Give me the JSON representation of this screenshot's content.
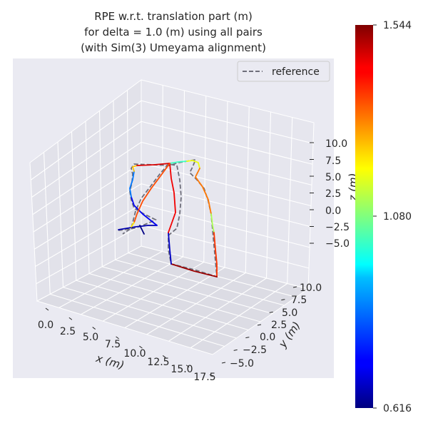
{
  "chart_data": {
    "type": "line",
    "projection": "3d",
    "title_lines": [
      "RPE w.r.t. translation part (m)",
      "for delta = 1.0 (m) using all pairs",
      "(with Sim(3) Umeyama alignment)"
    ],
    "xlabel": "x (m)",
    "ylabel": "y (m)",
    "zlabel": "z (m)",
    "x_ticks": [
      "0.0",
      "2.5",
      "5.0",
      "7.5",
      "10.0",
      "12.5",
      "15.0",
      "17.5"
    ],
    "y_ticks": [
      "−5.0",
      "−2.5",
      "0.0",
      "2.5",
      "5.0",
      "7.5",
      "10.0"
    ],
    "z_ticks": [
      "10.0",
      "7.5",
      "5.0",
      "2.5",
      "0.0",
      "−2.5",
      "−5.0"
    ],
    "legend": {
      "placement": "top-right",
      "entries": [
        {
          "label": "reference",
          "style": "dashed",
          "color": "#6e6e7a"
        }
      ]
    },
    "colorbar": {
      "colormap": "jet",
      "min": 0.616,
      "max": 1.544,
      "tick_labels": [
        "1.544",
        "1.080",
        "0.616"
      ]
    },
    "grid": true,
    "background_color": "#eaeaf2",
    "series": [
      {
        "kind": "reference",
        "points": [
          [
            166,
            323
          ],
          [
            188,
            320
          ],
          [
            200,
            316
          ],
          [
            212,
            311
          ],
          [
            218,
            308
          ],
          [
            202,
            300
          ],
          [
            188,
            292
          ],
          [
            184,
            280
          ],
          [
            182,
            268
          ],
          [
            185,
            256
          ],
          [
            186,
            244
          ],
          [
            184,
            236
          ],
          [
            188,
            230
          ],
          [
            214,
            231
          ],
          [
            238,
            232
          ],
          [
            250,
            228
          ],
          [
            262,
            226
          ],
          [
            274,
            224
          ],
          [
            270,
            234
          ],
          [
            266,
            242
          ],
          [
            276,
            252
          ],
          [
            286,
            264
          ],
          [
            292,
            282
          ],
          [
            296,
            300
          ],
          [
            298,
            322
          ],
          [
            300,
            344
          ],
          [
            302,
            366
          ],
          [
            304,
            388
          ],
          [
            272,
            378
          ],
          [
            240,
            370
          ],
          [
            236,
            350
          ],
          [
            236,
            330
          ],
          [
            248,
            320
          ],
          [
            252,
            300
          ],
          [
            254,
            276
          ],
          [
            252,
            252
          ],
          [
            248,
            232
          ],
          [
            236,
            230
          ],
          [
            224,
            244
          ],
          [
            212,
            260
          ],
          [
            198,
            278
          ],
          [
            190,
            296
          ],
          [
            184,
            320
          ],
          [
            172,
            328
          ]
        ]
      },
      {
        "kind": "estimate",
        "segments": [
          {
            "error": 0.66,
            "points": [
              [
                166,
                322
              ],
              [
                190,
                318
              ],
              [
                208,
                316
              ],
              [
                220,
                316
              ]
            ]
          },
          {
            "error": 0.62,
            "points": [
              [
                196,
                316
              ],
              [
                202,
                328
              ]
            ]
          },
          {
            "error": 0.72,
            "points": [
              [
                220,
                316
              ],
              [
                200,
                300
              ],
              [
                188,
                288
              ],
              [
                184,
                276
              ]
            ]
          },
          {
            "error": 0.84,
            "points": [
              [
                184,
                276
              ],
              [
                182,
                264
              ],
              [
                186,
                252
              ],
              [
                188,
                240
              ]
            ]
          },
          {
            "error": 1.25,
            "points": [
              [
                188,
                240
              ],
              [
                186,
                234
              ],
              [
                192,
                232
              ]
            ]
          },
          {
            "error": 1.46,
            "points": [
              [
                192,
                232
              ],
              [
                216,
                231
              ],
              [
                238,
                229
              ]
            ]
          },
          {
            "error": 1.02,
            "points": [
              [
                238,
                229
              ],
              [
                250,
                227
              ],
              [
                262,
                226
              ]
            ]
          },
          {
            "error": 1.18,
            "points": [
              [
                262,
                226
              ],
              [
                270,
                225
              ],
              [
                278,
                228
              ],
              [
                280,
                236
              ]
            ]
          },
          {
            "error": 1.32,
            "points": [
              [
                280,
                236
              ],
              [
                274,
                248
              ],
              [
                284,
                262
              ],
              [
                292,
                280
              ],
              [
                296,
                300
              ]
            ]
          },
          {
            "error": 1.12,
            "points": [
              [
                296,
                300
              ],
              [
                298,
                316
              ],
              [
                300,
                326
              ]
            ]
          },
          {
            "error": 1.38,
            "points": [
              [
                300,
                326
              ],
              [
                302,
                350
              ],
              [
                304,
                370
              ],
              [
                304,
                388
              ]
            ]
          },
          {
            "error": 1.52,
            "points": [
              [
                304,
                388
              ],
              [
                272,
                380
              ],
              [
                240,
                370
              ]
            ]
          },
          {
            "error": 0.68,
            "points": [
              [
                240,
                370
              ],
              [
                238,
                350
              ],
              [
                236,
                326
              ]
            ]
          },
          {
            "error": 1.44,
            "points": [
              [
                236,
                326
              ],
              [
                246,
                298
              ],
              [
                244,
                270
              ],
              [
                240,
                250
              ],
              [
                238,
                229
              ]
            ]
          },
          {
            "error": 1.36,
            "points": [
              [
                238,
                229
              ],
              [
                224,
                248
              ],
              [
                212,
                264
              ],
              [
                200,
                282
              ],
              [
                192,
                300
              ],
              [
                188,
                312
              ]
            ]
          },
          {
            "error": 1.22,
            "points": [
              [
                188,
                312
              ],
              [
                184,
                318
              ]
            ]
          }
        ]
      }
    ]
  }
}
